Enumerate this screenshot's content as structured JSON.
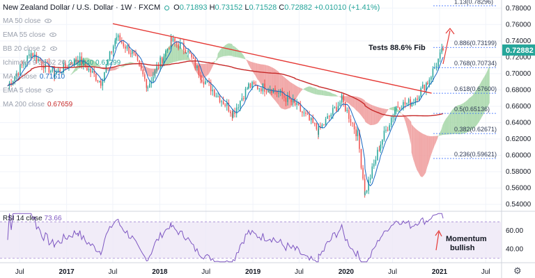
{
  "header": {
    "title": "New Zealand Dollar / U.S. Dollar · 1W · FXCM",
    "ohlc_labels": [
      "O",
      "H",
      "L",
      "C"
    ],
    "ohlc_values": [
      "0.71893",
      "0.73152",
      "0.71528",
      "0.72882"
    ],
    "change": "+0.01010 (+1.41%)"
  },
  "legend": [
    {
      "label": "MA 50 close",
      "value": ""
    },
    {
      "label": "EMA 55 close",
      "value": ""
    },
    {
      "label": "BB 20 close 2",
      "value": ""
    },
    {
      "label": "Ichimoku 9 26 52 26",
      "value": "0.61640  0.61299"
    },
    {
      "label": "MA 5 close",
      "value": "0.71610"
    },
    {
      "label": "EMA 5 close",
      "value": ""
    },
    {
      "label": "MA 200 close",
      "value": "0.67659"
    }
  ],
  "rsi_label": {
    "label": "RSI 14 close",
    "value": "73.66"
  },
  "annotations": {
    "fib_note": "Tests 88.6% Fib",
    "momentum": [
      "Momentum",
      "bullish"
    ]
  },
  "colors": {
    "up": "#26a69a",
    "down": "#ef5350",
    "cloud_bull": "#a5d6a7",
    "cloud_bear": "#ef9a9a",
    "trend": "#e53935",
    "ma200": "#c62828",
    "ma5": "#1565c0",
    "rsi": "#7e57c2",
    "fib": "#2962ff"
  },
  "chart_data": {
    "type": "candlestick",
    "title": "New Zealand Dollar / U.S. Dollar",
    "timeframe": "1W",
    "ylim": [
      0.535,
      0.79
    ],
    "y_ticks": [
      "0.78000",
      "0.76000",
      "0.74000",
      "0.72000",
      "0.70000",
      "0.68000",
      "0.66000",
      "0.64000",
      "0.62000",
      "0.60000",
      "0.58000",
      "0.56000",
      "0.54000"
    ],
    "y_tick_values": [
      0.78,
      0.76,
      0.74,
      0.72,
      0.7,
      0.68,
      0.66,
      0.64,
      0.62,
      0.6,
      0.58,
      0.56,
      0.54
    ],
    "x_ticks": [
      "Jul",
      "2017",
      "Jul",
      "2018",
      "Jul",
      "2019",
      "Jul",
      "2020",
      "Jul",
      "2021",
      "Jul"
    ],
    "x_tick_dates": [
      "2016-07",
      "2017-01",
      "2017-07",
      "2018-01",
      "2018-07",
      "2019-01",
      "2019-07",
      "2020-01",
      "2020-07",
      "2021-01",
      "2021-07"
    ],
    "current_price": "0.72882",
    "price_path": [
      {
        "date": "2016-05",
        "close": 0.685
      },
      {
        "date": "2016-08",
        "close": 0.725
      },
      {
        "date": "2016-11",
        "close": 0.7
      },
      {
        "date": "2017-02",
        "close": 0.718
      },
      {
        "date": "2017-05",
        "close": 0.69
      },
      {
        "date": "2017-07",
        "close": 0.745
      },
      {
        "date": "2017-09",
        "close": 0.725
      },
      {
        "date": "2017-11",
        "close": 0.685
      },
      {
        "date": "2018-02",
        "close": 0.74
      },
      {
        "date": "2018-04",
        "close": 0.73
      },
      {
        "date": "2018-06",
        "close": 0.695
      },
      {
        "date": "2018-10",
        "close": 0.652
      },
      {
        "date": "2018-12",
        "close": 0.685
      },
      {
        "date": "2019-03",
        "close": 0.682
      },
      {
        "date": "2019-06",
        "close": 0.662
      },
      {
        "date": "2019-09",
        "close": 0.63
      },
      {
        "date": "2019-12",
        "close": 0.668
      },
      {
        "date": "2020-02",
        "close": 0.625
      },
      {
        "date": "2020-03",
        "close": 0.553
      },
      {
        "date": "2020-05",
        "close": 0.615
      },
      {
        "date": "2020-07",
        "close": 0.66
      },
      {
        "date": "2020-09",
        "close": 0.665
      },
      {
        "date": "2020-11",
        "close": 0.69
      },
      {
        "date": "2021-01",
        "close": 0.7288
      }
    ],
    "trendline": {
      "start": {
        "date": "2017-07",
        "value": 0.761
      },
      "end": {
        "date": "2020-12",
        "value": 0.676
      }
    },
    "fib_levels": [
      {
        "label": "1.13(0.78296)",
        "value": 0.78296
      },
      {
        "label": "0.886(0.73199)",
        "value": 0.73199
      },
      {
        "label": "0.768(0.70734)",
        "value": 0.70734
      },
      {
        "label": "0.618(0.67600)",
        "value": 0.676
      },
      {
        "label": "0.5(0.65136)",
        "value": 0.65136
      },
      {
        "label": "0.382(0.62671)",
        "value": 0.62671
      },
      {
        "label": "0.236(0.59621)",
        "value": 0.59621
      }
    ],
    "rsi": {
      "ylim": [
        25,
        80
      ],
      "y_ticks": [
        "60.00",
        "40.00"
      ],
      "y_tick_values": [
        60,
        40
      ],
      "band": [
        30,
        70
      ],
      "last_value": 73.66
    }
  }
}
